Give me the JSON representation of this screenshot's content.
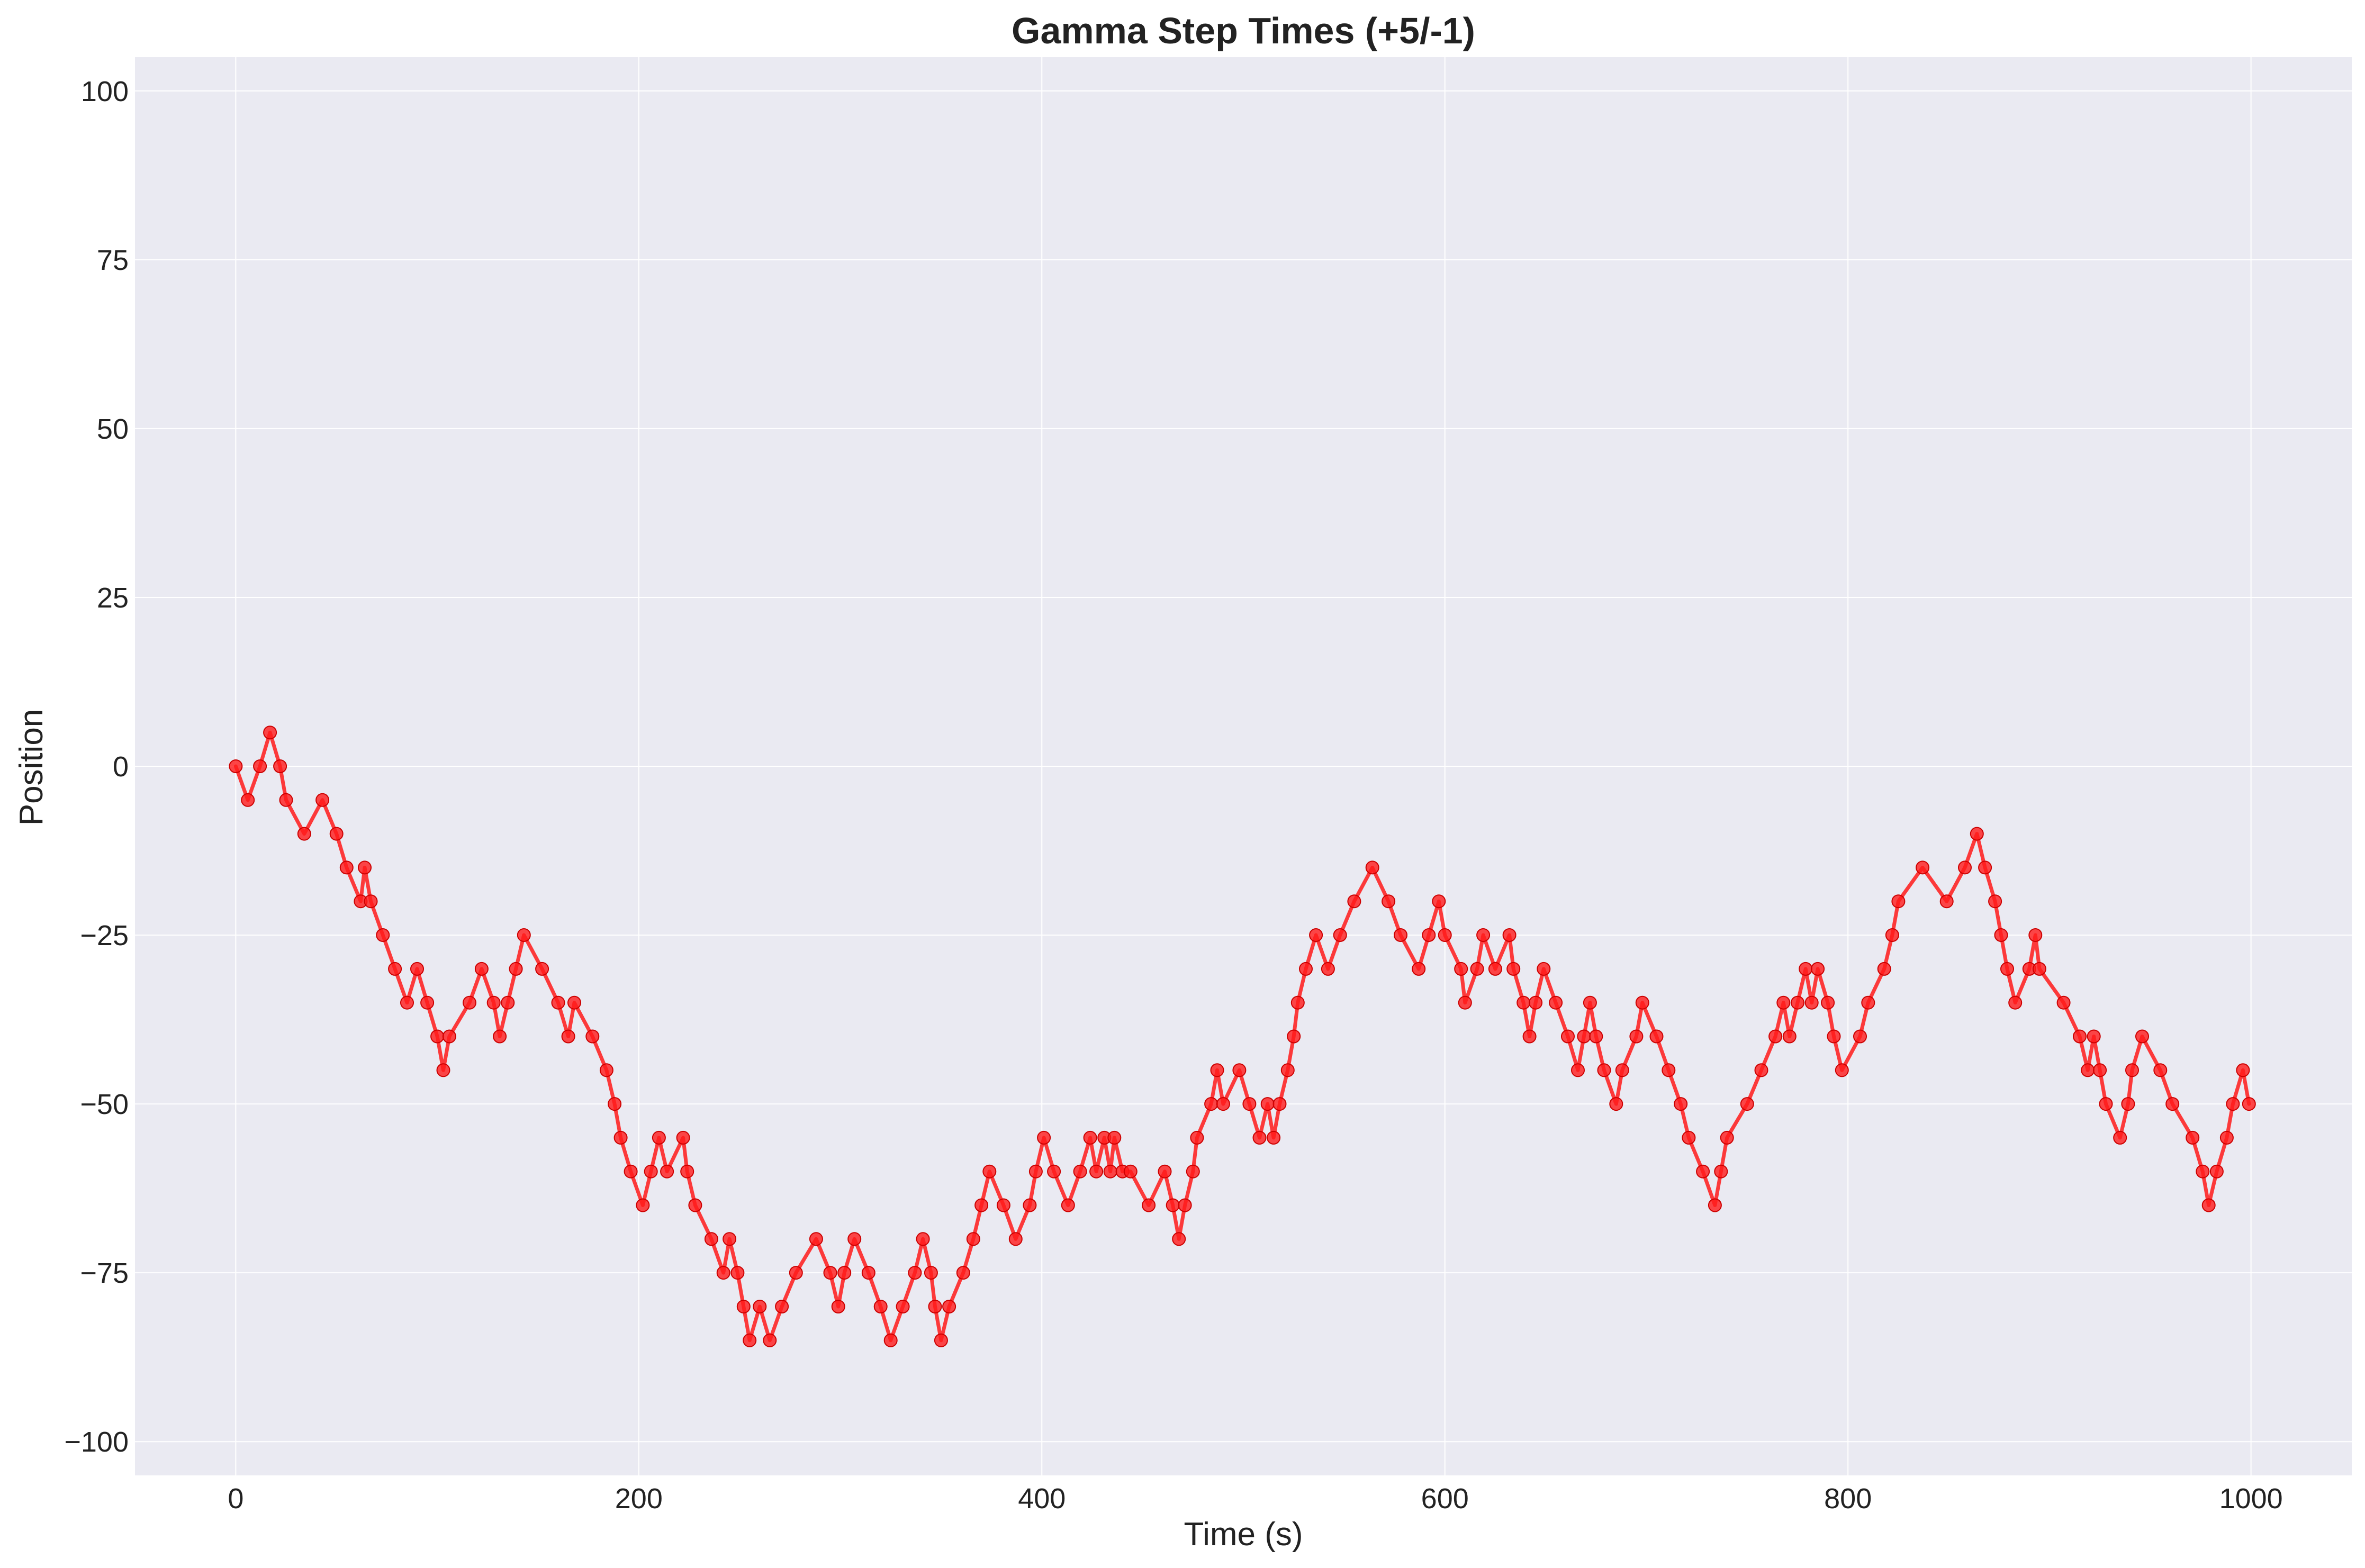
{
  "chart_data": {
    "type": "line",
    "title": "Gamma Step Times (+5/-1)",
    "xlabel": "Time (s)",
    "ylabel": "Position",
    "xlim": [
      -50,
      1050
    ],
    "ylim": [
      -105,
      105
    ],
    "xticks": [
      0,
      200,
      400,
      600,
      800,
      1000
    ],
    "yticks": [
      100,
      75,
      50,
      25,
      0,
      -25,
      -50,
      -75,
      -100
    ],
    "xtick_labels": [
      "0",
      "200",
      "400",
      "600",
      "800",
      "1000"
    ],
    "ytick_labels": [
      "100",
      "75",
      "50",
      "25",
      "0",
      "−25",
      "−50",
      "−75",
      "−100"
    ],
    "grid": true,
    "line_color": "#ff1a1a",
    "background_color": "#eaeaf2",
    "series": [
      {
        "x": [
          0,
          6,
          12,
          17,
          22,
          25,
          34,
          43,
          50,
          55,
          62,
          64,
          67,
          73,
          79,
          85,
          90,
          95,
          100,
          103,
          106,
          116,
          122,
          128,
          131,
          135,
          139,
          143,
          152,
          160,
          165,
          168,
          177,
          184,
          188,
          191,
          196,
          202,
          206,
          210,
          214,
          222,
          224,
          228,
          236,
          242,
          245,
          249,
          252,
          255,
          260,
          265,
          271,
          278,
          288,
          295,
          299,
          302,
          307,
          314,
          320,
          325,
          331,
          337,
          341,
          345,
          347,
          350,
          354,
          361,
          366,
          370,
          374,
          381,
          387,
          394,
          397,
          401,
          406,
          413,
          419,
          424,
          427,
          431,
          434,
          436,
          440,
          444,
          453,
          461,
          465,
          468,
          471,
          475,
          477,
          484,
          487,
          490,
          498,
          503,
          508,
          512,
          515,
          518,
          522,
          525,
          527,
          531,
          536,
          542,
          548,
          555,
          564,
          572,
          578,
          587,
          592,
          597,
          600,
          608,
          610,
          616,
          619,
          625,
          632,
          634,
          639,
          642,
          645,
          649,
          655,
          661,
          666,
          669,
          672,
          675,
          679,
          685,
          688,
          695,
          698,
          705,
          711,
          717,
          721,
          728,
          734,
          737,
          740,
          750,
          757,
          764,
          768,
          771,
          775,
          779,
          782,
          785,
          790,
          793,
          797,
          806,
          810,
          818,
          822,
          825,
          837,
          849,
          858,
          864,
          868,
          873,
          876,
          879,
          883,
          890,
          893,
          895,
          907,
          915,
          919,
          922,
          925,
          928,
          935,
          939,
          941,
          946,
          955,
          961,
          971,
          976,
          979,
          983,
          988,
          991,
          996,
          999
        ],
        "y": [
          0,
          -5,
          0,
          5,
          0,
          -5,
          -10,
          -5,
          -10,
          -15,
          -20,
          -15,
          -20,
          -25,
          -30,
          -35,
          -30,
          -35,
          -40,
          -45,
          -40,
          -35,
          -30,
          -35,
          -40,
          -35,
          -30,
          -25,
          -30,
          -35,
          -40,
          -35,
          -40,
          -45,
          -50,
          -55,
          -60,
          -65,
          -60,
          -55,
          -60,
          -55,
          -60,
          -65,
          -70,
          -75,
          -70,
          -75,
          -80,
          -85,
          -80,
          -85,
          -80,
          -75,
          -70,
          -75,
          -80,
          -75,
          -70,
          -75,
          -80,
          -85,
          -80,
          -75,
          -70,
          -75,
          -80,
          -85,
          -80,
          -75,
          -70,
          -65,
          -60,
          -65,
          -70,
          -65,
          -60,
          -55,
          -60,
          -65,
          -60,
          -55,
          -60,
          -55,
          -60,
          -55,
          -60,
          -60,
          -65,
          -60,
          -65,
          -70,
          -65,
          -60,
          -55,
          -50,
          -45,
          -50,
          -45,
          -50,
          -55,
          -50,
          -55,
          -50,
          -45,
          -40,
          -35,
          -30,
          -25,
          -30,
          -25,
          -20,
          -15,
          -20,
          -25,
          -30,
          -25,
          -20,
          -25,
          -30,
          -35,
          -30,
          -25,
          -30,
          -25,
          -30,
          -35,
          -40,
          -35,
          -30,
          -35,
          -40,
          -45,
          -40,
          -35,
          -40,
          -45,
          -50,
          -45,
          -40,
          -35,
          -40,
          -45,
          -50,
          -55,
          -60,
          -65,
          -60,
          -55,
          -50,
          -45,
          -40,
          -35,
          -40,
          -35,
          -30,
          -35,
          -30,
          -35,
          -40,
          -45,
          -40,
          -35,
          -30,
          -25,
          -20,
          -15,
          -20,
          -15,
          -10,
          -15,
          -20,
          -25,
          -30,
          -35,
          -30,
          -25,
          -30,
          -35,
          -40,
          -45,
          -40,
          -45,
          -50,
          -55,
          -50,
          -45,
          -40,
          -45,
          -50,
          -55,
          -60,
          -65,
          -60,
          -55,
          -50,
          -45,
          -50
        ]
      }
    ]
  }
}
